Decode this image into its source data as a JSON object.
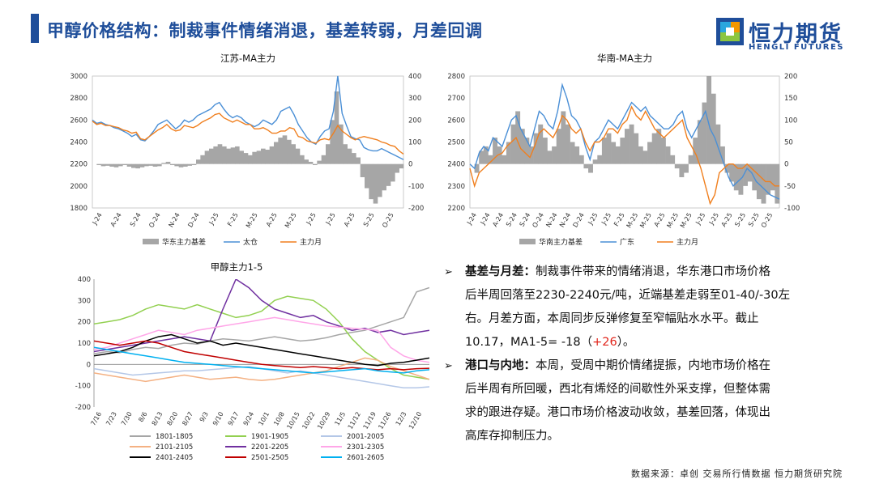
{
  "header": {
    "title": "甲醇价格结构：制裁事件情绪消退，基差转弱，月差回调"
  },
  "logo": {
    "cn": "恒力期货",
    "en": "HENGLI FUTURES",
    "colors": [
      "#1f4e9a",
      "#2aa6de",
      "#f39800",
      "#8cc63f"
    ]
  },
  "colors": {
    "basis": "#a6a6a6",
    "line1": "#4a8fd6",
    "line2": "#f07f1e"
  },
  "chart_data": [
    {
      "id": "jiangsu",
      "type": "line",
      "title": "江苏-MA主力",
      "x_ticks": [
        "J-24",
        "A-24",
        "S-24",
        "O-24",
        "N-24",
        "D-24",
        "J-25",
        "F-25",
        "M-25",
        "A-25",
        "M-25",
        "J-25",
        "J-25",
        "A-25",
        "S-25",
        "O-25"
      ],
      "ylim_left": [
        1800,
        3000
      ],
      "y_ticks_left": [
        1800,
        2000,
        2200,
        2400,
        2600,
        2800,
        3000
      ],
      "ylim_right": [
        -200,
        400
      ],
      "y_ticks_right": [
        -200,
        -100,
        0,
        100,
        200,
        300,
        400
      ],
      "legend_position": "bottom",
      "series": [
        {
          "name": "华东主力基差",
          "kind": "area",
          "axis": "right",
          "values": [
            0,
            -5,
            -10,
            -8,
            -12,
            -15,
            -10,
            -5,
            -12,
            -18,
            -20,
            -15,
            -10,
            -8,
            -12,
            -10,
            5,
            10,
            -5,
            -10,
            -15,
            -12,
            -8,
            -5,
            20,
            40,
            60,
            70,
            80,
            90,
            80,
            70,
            75,
            80,
            60,
            50,
            40,
            55,
            60,
            70,
            65,
            80,
            100,
            120,
            130,
            110,
            90,
            70,
            40,
            20,
            10,
            -5,
            15,
            40,
            90,
            200,
            330,
            180,
            90,
            70,
            50,
            30,
            -60,
            -110,
            -160,
            -180,
            -150,
            -120,
            -100,
            -80,
            -40,
            -20
          ]
        },
        {
          "name": "太仓",
          "kind": "line",
          "axis": "left",
          "values": [
            2600,
            2570,
            2580,
            2560,
            2550,
            2530,
            2520,
            2500,
            2480,
            2450,
            2470,
            2420,
            2410,
            2450,
            2500,
            2560,
            2580,
            2600,
            2560,
            2520,
            2550,
            2600,
            2580,
            2600,
            2640,
            2660,
            2680,
            2700,
            2740,
            2760,
            2700,
            2650,
            2620,
            2640,
            2620,
            2580,
            2560,
            2540,
            2560,
            2600,
            2580,
            2560,
            2600,
            2680,
            2700,
            2720,
            2650,
            2560,
            2500,
            2440,
            2400,
            2380,
            2450,
            2500,
            2520,
            2680,
            3000,
            2660,
            2550,
            2450,
            2430,
            2420,
            2350,
            2330,
            2320,
            2320,
            2340,
            2320,
            2300,
            2280,
            2260,
            2240
          ]
        },
        {
          "name": "主力月",
          "kind": "line",
          "axis": "left",
          "values": [
            2590,
            2560,
            2570,
            2550,
            2550,
            2540,
            2530,
            2510,
            2500,
            2480,
            2490,
            2430,
            2420,
            2450,
            2480,
            2510,
            2530,
            2560,
            2520,
            2500,
            2510,
            2550,
            2540,
            2530,
            2550,
            2580,
            2600,
            2620,
            2650,
            2660,
            2620,
            2600,
            2580,
            2600,
            2580,
            2560,
            2560,
            2520,
            2520,
            2530,
            2510,
            2480,
            2480,
            2500,
            2500,
            2530,
            2520,
            2450,
            2440,
            2410,
            2400,
            2390,
            2420,
            2430,
            2420,
            2480,
            2550,
            2500,
            2470,
            2440,
            2420,
            2440,
            2450,
            2440,
            2430,
            2420,
            2400,
            2390,
            2370,
            2360,
            2320,
            2290
          ]
        }
      ]
    },
    {
      "id": "huanan",
      "type": "line",
      "title": "华南-MA主力",
      "x_ticks": [
        "J-24",
        "A-24",
        "S-24",
        "O-24",
        "N-24",
        "D-24",
        "J-25",
        "F-25",
        "M-25",
        "A-25",
        "M-25",
        "J-25",
        "J-25",
        "A-25",
        "S-25",
        "O-25"
      ],
      "x_ticks_dense": [
        "J-24",
        "J-24",
        "A-24",
        "S-24",
        "S-24",
        "O-24",
        "N-24",
        "N-24",
        "D-24",
        "J-25",
        "J-25",
        "F-25",
        "M-25",
        "M-25",
        "A-25",
        "M-25",
        "M-25",
        "J-25",
        "J-25",
        "A-25",
        "S-25",
        "S-25",
        "O-25"
      ],
      "ylim_left": [
        2200,
        2800
      ],
      "y_ticks_left": [
        2200,
        2300,
        2400,
        2500,
        2600,
        2700,
        2800
      ],
      "ylim_right": [
        -100,
        200
      ],
      "y_ticks_right": [
        -100,
        -50,
        0,
        50,
        100,
        150,
        200
      ],
      "legend_position": "bottom",
      "series": [
        {
          "name": "华南主力基差",
          "kind": "area",
          "axis": "right",
          "values": [
            0,
            -20,
            30,
            40,
            20,
            60,
            40,
            20,
            50,
            90,
            120,
            80,
            60,
            40,
            70,
            90,
            60,
            30,
            40,
            80,
            120,
            90,
            50,
            40,
            20,
            -10,
            -20,
            10,
            20,
            60,
            70,
            50,
            40,
            60,
            80,
            90,
            70,
            40,
            30,
            50,
            70,
            80,
            60,
            40,
            20,
            -10,
            -30,
            -20,
            20,
            60,
            100,
            140,
            200,
            160,
            90,
            40,
            -20,
            -40,
            -60,
            -70,
            -50,
            -40,
            -60,
            -80,
            -90,
            -70,
            -60,
            -90
          ]
        },
        {
          "name": "广东",
          "kind": "line",
          "axis": "left",
          "values": [
            2400,
            2380,
            2450,
            2480,
            2460,
            2520,
            2500,
            2480,
            2540,
            2600,
            2620,
            2560,
            2520,
            2480,
            2560,
            2640,
            2620,
            2580,
            2560,
            2640,
            2760,
            2700,
            2620,
            2600,
            2560,
            2480,
            2420,
            2500,
            2520,
            2560,
            2600,
            2580,
            2560,
            2600,
            2640,
            2680,
            2660,
            2640,
            2660,
            2620,
            2600,
            2580,
            2560,
            2560,
            2580,
            2620,
            2640,
            2560,
            2520,
            2560,
            2600,
            2640,
            2560,
            2520,
            2460,
            2400,
            2340,
            2300,
            2320,
            2340,
            2380,
            2360,
            2320,
            2300,
            2280,
            2260,
            2250,
            2240
          ]
        },
        {
          "name": "主力月",
          "kind": "line",
          "axis": "left",
          "values": [
            2380,
            2300,
            2360,
            2380,
            2400,
            2420,
            2440,
            2450,
            2480,
            2500,
            2520,
            2470,
            2450,
            2430,
            2480,
            2540,
            2560,
            2540,
            2520,
            2560,
            2620,
            2600,
            2560,
            2540,
            2560,
            2500,
            2460,
            2500,
            2500,
            2520,
            2560,
            2560,
            2540,
            2580,
            2600,
            2660,
            2620,
            2600,
            2640,
            2600,
            2560,
            2540,
            2520,
            2540,
            2560,
            2580,
            2600,
            2520,
            2480,
            2440,
            2380,
            2300,
            2220,
            2260,
            2360,
            2380,
            2400,
            2400,
            2380,
            2380,
            2400,
            2380,
            2360,
            2340,
            2320,
            2320,
            2300,
            2300
          ]
        }
      ]
    },
    {
      "id": "spread15",
      "type": "line",
      "title": "甲醇主力1-5",
      "x_ticks": [
        "7/16",
        "7/23",
        "7/30",
        "8/6",
        "8/13",
        "8/20",
        "8/27",
        "9/3",
        "9/10",
        "9/17",
        "9/24",
        "10/1",
        "10/8",
        "10/15",
        "10/22",
        "10/29",
        "11/5",
        "11/12",
        "11/19",
        "11/26",
        "12/3",
        "12/10"
      ],
      "ylim": [
        -200,
        400
      ],
      "y_ticks": [
        -200,
        -100,
        0,
        100,
        200,
        300,
        400
      ],
      "legend_position": "bottom",
      "series": [
        {
          "name": "1801-1805",
          "color": "#a6a6a6",
          "values": [
            50,
            60,
            55,
            70,
            80,
            75,
            90,
            100,
            95,
            110,
            120,
            115,
            110,
            120,
            130,
            120,
            110,
            115,
            125,
            140,
            150,
            160,
            180,
            200,
            220,
            340,
            360
          ]
        },
        {
          "name": "1901-1905",
          "color": "#92d050",
          "values": [
            190,
            200,
            210,
            230,
            260,
            280,
            270,
            260,
            280,
            260,
            240,
            220,
            230,
            250,
            300,
            320,
            310,
            300,
            260,
            200,
            120,
            60,
            20,
            -20,
            -50,
            -60,
            -70
          ]
        },
        {
          "name": "2001-2005",
          "color": "#b4c7e7",
          "values": [
            -20,
            -30,
            -40,
            -50,
            -45,
            -40,
            -35,
            -30,
            -30,
            -25,
            -20,
            -15,
            -10,
            -20,
            -30,
            -40,
            -30,
            -40,
            -50,
            -60,
            -70,
            -80,
            -90,
            -100,
            -110,
            -110,
            -105
          ]
        },
        {
          "name": "2101-2105",
          "color": "#f4b183",
          "values": [
            -40,
            -50,
            -60,
            -70,
            -80,
            -70,
            -60,
            -50,
            -60,
            -70,
            -65,
            -60,
            -70,
            -75,
            -70,
            -60,
            -50,
            -40,
            -30,
            -10,
            10,
            30,
            20,
            -10,
            -30,
            -50,
            -70
          ]
        },
        {
          "name": "2201-2205",
          "color": "#7030a0",
          "values": [
            60,
            70,
            80,
            90,
            100,
            110,
            120,
            130,
            120,
            110,
            260,
            400,
            360,
            300,
            260,
            240,
            220,
            230,
            200,
            180,
            160,
            170,
            150,
            160,
            140,
            150,
            160
          ]
        },
        {
          "name": "2301-2305",
          "color": "#ffa6e8",
          "values": [
            70,
            80,
            100,
            120,
            140,
            160,
            150,
            140,
            160,
            170,
            180,
            190,
            200,
            210,
            220,
            210,
            200,
            190,
            180,
            175,
            170,
            165,
            160,
            80,
            40,
            20,
            10
          ]
        },
        {
          "name": "2401-2405",
          "color": "#000000",
          "values": [
            40,
            50,
            60,
            80,
            110,
            130,
            140,
            120,
            100,
            110,
            90,
            100,
            90,
            80,
            70,
            60,
            50,
            40,
            30,
            20,
            10,
            0,
            -5,
            5,
            10,
            20,
            30
          ]
        },
        {
          "name": "2501-2505",
          "color": "#c00000",
          "values": [
            110,
            100,
            90,
            100,
            110,
            100,
            80,
            60,
            50,
            40,
            30,
            20,
            10,
            0,
            -5,
            -10,
            -15,
            -10,
            -15,
            -20,
            -15,
            -20,
            -25,
            -20,
            -25,
            -20,
            -18
          ]
        },
        {
          "name": "2601-2605",
          "color": "#00b0f0",
          "values": [
            80,
            70,
            60,
            50,
            40,
            30,
            20,
            10,
            5,
            0,
            -5,
            -10,
            -15,
            -20,
            -25,
            -30,
            -35,
            -40,
            -35,
            -30,
            -25,
            -20,
            -30,
            -35,
            -40,
            -30,
            -25
          ]
        }
      ]
    }
  ],
  "bullets": [
    {
      "heading": "基差与月差：",
      "lines": [
        "制裁事件带来的情绪消退，华东港口市场价格",
        "后半周回落至2230-2240元/吨，近端基差走弱至01-40/-30左",
        "右。月差方面，本周同步反弹修复至窄幅贴水水平。截止",
        "10.17，MA1-5= -18（"
      ],
      "highlight": "+26",
      "tail": "）。"
    },
    {
      "heading": "港口与内地：",
      "lines": [
        "本周，受周中期价情绪提振，内地市场价格在",
        "后半周有所回暖，西北有烯烃的间歇性外采支撑，但整体需",
        "求的跟进存疑。港口市场价格波动收敛，基差回落，体现出",
        "高库存抑制压力。"
      ]
    }
  ],
  "source": "数据来源：卓创  交易所行情数据  恒力期货研究院"
}
